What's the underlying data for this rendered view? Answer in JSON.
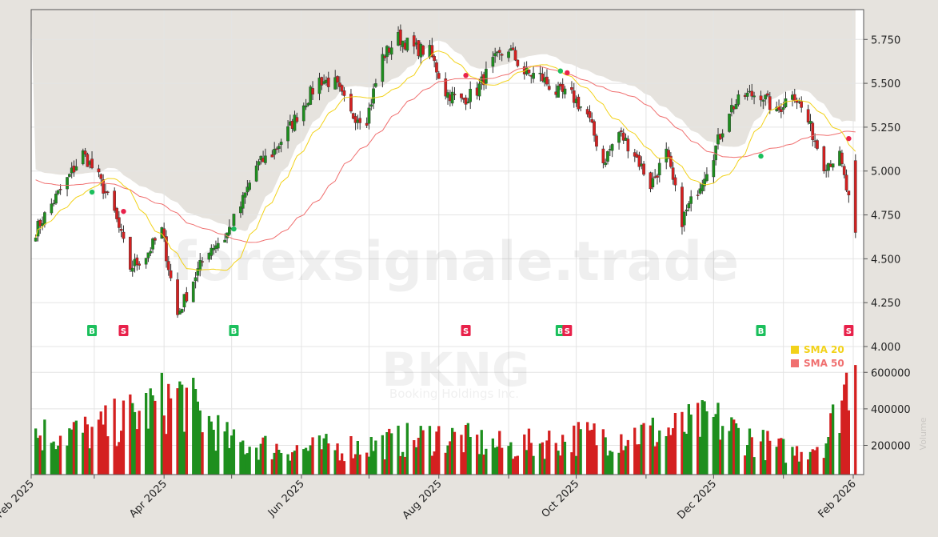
{
  "colors": {
    "up": "#1e8f1e",
    "down": "#d42020",
    "sma20": "#f2d21a",
    "sma50": "#f07070",
    "buy": "#1bbf5c",
    "sell": "#e8214a",
    "grid": "#e4e4e4",
    "frame": "#555555"
  },
  "watermark": {
    "site": "forexsignale.trade",
    "ticker": "BKNG",
    "company": "Booking Holdings Inc.",
    "side_label": "Volume"
  },
  "chart_data": {
    "type": "candlestick",
    "title": "",
    "x_range": [
      "2025-02-01",
      "2026-02-01"
    ],
    "x_ticks": [
      "Feb 2025",
      "Apr 2025",
      "Jun 2025",
      "Aug 2025",
      "Oct 2025",
      "Dec 2025",
      "Feb 2026"
    ],
    "price_axis": {
      "ylim": [
        4000,
        5920
      ],
      "ticks": [
        4000,
        4250,
        4500,
        4750,
        5000,
        5250,
        5500,
        5750
      ],
      "tick_labels": [
        "4.000",
        "4.250",
        "4.500",
        "4.750",
        "5.000",
        "5.250",
        "5.500",
        "5.750"
      ]
    },
    "volume_axis": {
      "ylim": [
        40000,
        680000
      ],
      "ticks": [
        200000,
        400000,
        600000
      ],
      "tick_labels": [
        "200000",
        "400000",
        "600000"
      ]
    },
    "legend": {
      "placement": "lower-right of price panel",
      "items": [
        {
          "name": "SMA 20",
          "color": "#f2d21a"
        },
        {
          "name": "SMA 50",
          "color": "#f07070"
        }
      ]
    },
    "price_anchors": [
      [
        "2025-02-03",
        4660
      ],
      [
        "2025-02-10",
        4810
      ],
      [
        "2025-02-17",
        4950
      ],
      [
        "2025-02-24",
        5100
      ],
      [
        "2025-03-03",
        4960
      ],
      [
        "2025-03-10",
        4760
      ],
      [
        "2025-03-17",
        4450
      ],
      [
        "2025-03-24",
        4520
      ],
      [
        "2025-03-31",
        4660
      ],
      [
        "2025-04-07",
        4180
      ],
      [
        "2025-04-14",
        4380
      ],
      [
        "2025-04-21",
        4560
      ],
      [
        "2025-04-28",
        4620
      ],
      [
        "2025-05-05",
        4800
      ],
      [
        "2025-05-12",
        5030
      ],
      [
        "2025-05-19",
        5100
      ],
      [
        "2025-05-26",
        5230
      ],
      [
        "2025-06-02",
        5380
      ],
      [
        "2025-06-09",
        5520
      ],
      [
        "2025-06-16",
        5500
      ],
      [
        "2025-06-23",
        5320
      ],
      [
        "2025-06-30",
        5300
      ],
      [
        "2025-07-07",
        5650
      ],
      [
        "2025-07-14",
        5760
      ],
      [
        "2025-07-21",
        5700
      ],
      [
        "2025-07-28",
        5680
      ],
      [
        "2025-08-04",
        5450
      ],
      [
        "2025-08-11",
        5400
      ],
      [
        "2025-08-18",
        5460
      ],
      [
        "2025-08-25",
        5620
      ],
      [
        "2025-09-01",
        5700
      ],
      [
        "2025-09-08",
        5560
      ],
      [
        "2025-09-15",
        5540
      ],
      [
        "2025-09-22",
        5450
      ],
      [
        "2025-09-29",
        5430
      ],
      [
        "2025-10-06",
        5320
      ],
      [
        "2025-10-13",
        5050
      ],
      [
        "2025-10-20",
        5220
      ],
      [
        "2025-10-27",
        5100
      ],
      [
        "2025-11-03",
        4920
      ],
      [
        "2025-11-10",
        5100
      ],
      [
        "2025-11-17",
        4720
      ],
      [
        "2025-11-24",
        4900
      ],
      [
        "2025-12-01",
        5100
      ],
      [
        "2025-12-08",
        5350
      ],
      [
        "2025-12-15",
        5430
      ],
      [
        "2025-12-22",
        5440
      ],
      [
        "2025-12-29",
        5330
      ],
      [
        "2026-01-05",
        5460
      ],
      [
        "2026-01-12",
        5280
      ],
      [
        "2026-01-19",
        5040
      ],
      [
        "2026-01-26",
        5080
      ],
      [
        "2026-02-02",
        4650
      ]
    ],
    "volume_anchors": [
      [
        "2025-02-03",
        250000
      ],
      [
        "2025-03-01",
        260000
      ],
      [
        "2025-04-08",
        450000
      ],
      [
        "2025-05-01",
        200000
      ],
      [
        "2025-06-01",
        170000
      ],
      [
        "2025-07-01",
        190000
      ],
      [
        "2025-08-01",
        240000
      ],
      [
        "2025-09-01",
        180000
      ],
      [
        "2025-10-01",
        230000
      ],
      [
        "2025-11-10",
        260000
      ],
      [
        "2025-12-01",
        320000
      ],
      [
        "2025-12-20",
        210000
      ],
      [
        "2026-01-05",
        150000
      ],
      [
        "2026-01-20",
        220000
      ],
      [
        "2026-02-02",
        640000
      ]
    ],
    "signals": [
      {
        "type": "B",
        "date": "2025-02-28",
        "price": 4880
      },
      {
        "type": "S",
        "date": "2025-03-14",
        "price": 4770
      },
      {
        "type": "B",
        "date": "2025-05-02",
        "price": 4670
      },
      {
        "type": "S",
        "date": "2025-08-13",
        "price": 5545
      },
      {
        "type": "B",
        "date": "2025-09-24",
        "price": 5570
      },
      {
        "type": "S",
        "date": "2025-09-27",
        "price": 5560
      },
      {
        "type": "B",
        "date": "2025-12-22",
        "price": 5085
      },
      {
        "type": "S",
        "date": "2026-01-30",
        "price": 5185
      }
    ]
  }
}
